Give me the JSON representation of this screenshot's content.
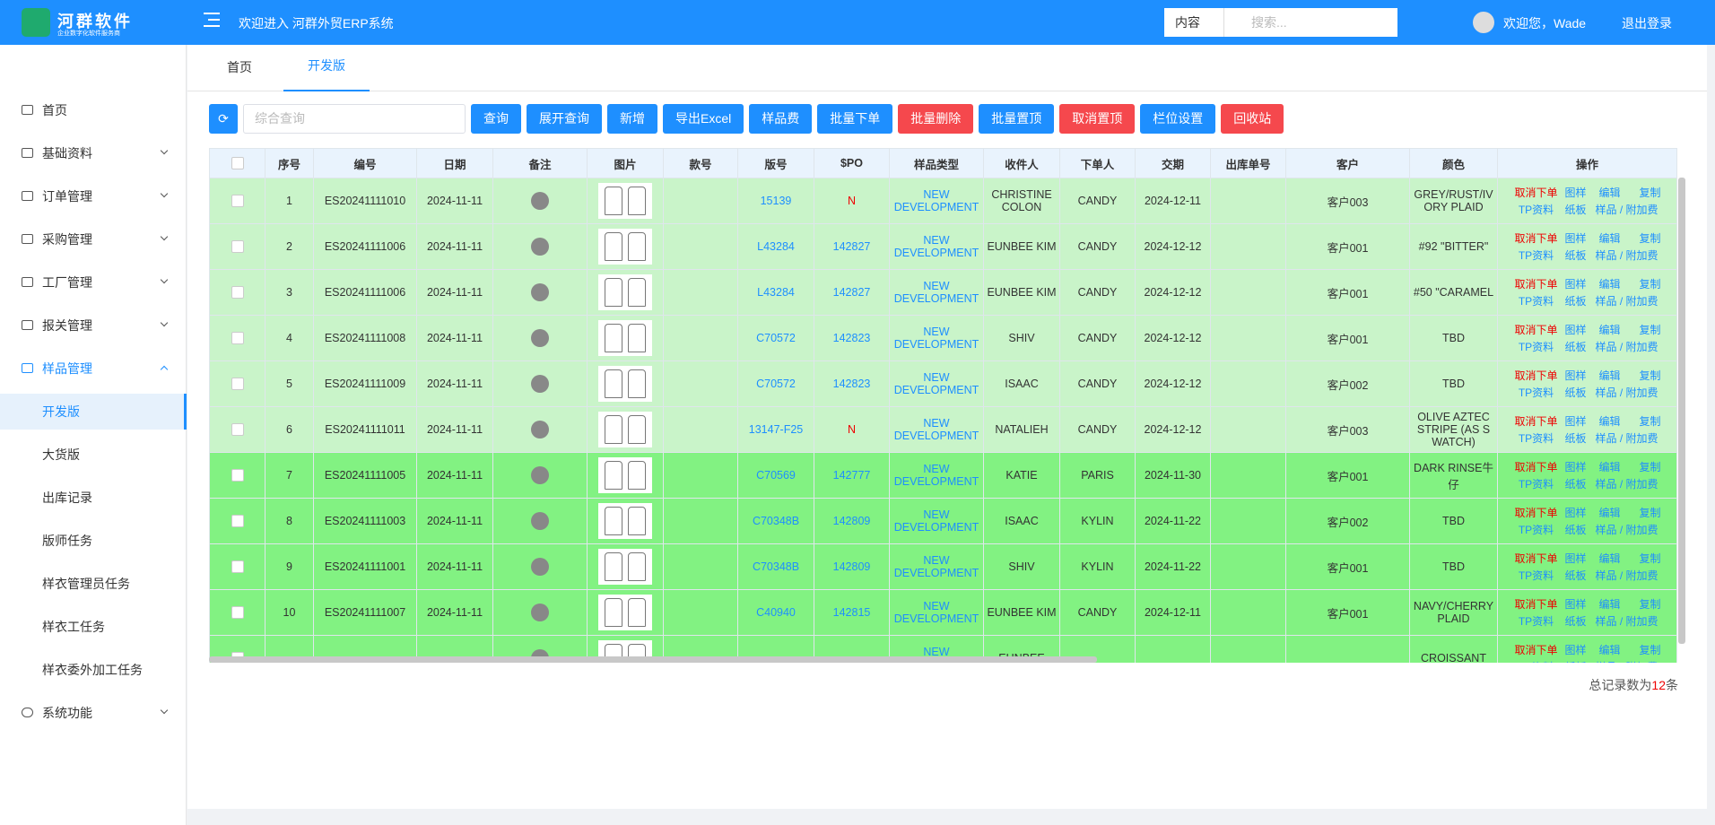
{
  "header": {
    "brand": "河群软件",
    "brand_sub": "企业数字化软件服务商",
    "welcome": "欢迎进入 河群外贸ERP系统",
    "search_scope": "内容",
    "search_placeholder": "搜索...",
    "greeting": "欢迎您，Wade",
    "logout": "退出登录"
  },
  "sidebar": {
    "items": [
      "首页",
      "基础资料",
      "订单管理",
      "采购管理",
      "工厂管理",
      "报关管理",
      "样品管理"
    ],
    "sub_items": [
      "开发版",
      "大货版",
      "出库记录",
      "版师任务",
      "样衣管理员任务",
      "样衣工任务",
      "样衣委外加工任务"
    ],
    "last_item": "系统功能"
  },
  "tabs": [
    "首页",
    "开发版"
  ],
  "toolbar": {
    "search_placeholder": "综合查询",
    "buttons": [
      "查询",
      "展开查询",
      "新增",
      "导出Excel",
      "样品费",
      "批量下单",
      "批量删除",
      "批量置顶",
      "取消置顶",
      "栏位设置",
      "回收站"
    ]
  },
  "table": {
    "columns": [
      "序号",
      "编号",
      "日期",
      "备注",
      "图片",
      "款号",
      "版号",
      "$PO",
      "样品类型",
      "收件人",
      "下单人",
      "交期",
      "出库单号",
      "客户",
      "颜色",
      "操作"
    ],
    "ops": [
      "取消下单",
      "图样",
      "编辑",
      "复制",
      "TP资料",
      "纸板",
      "样品 / 附加费"
    ],
    "rows": [
      {
        "seq": "1",
        "code": "ES20241111010",
        "date": "2024-11-11",
        "style": null,
        "plate": "15139",
        "po": "N",
        "type": "NEW DEVELOPMENT",
        "receiver": "CHRISTINE COLON",
        "orderer": "CANDY",
        "due": "2024-12-11",
        "outbound": null,
        "customer": "客户003",
        "color": "GREY/RUST/IVORY PLAID"
      },
      {
        "seq": "2",
        "code": "ES20241111006",
        "date": "2024-11-11",
        "style": null,
        "plate": "L43284",
        "po": "142827",
        "type": "NEW DEVELOPMENT",
        "receiver": "EUNBEE KIM",
        "orderer": "CANDY",
        "due": "2024-12-12",
        "outbound": null,
        "customer": "客户001",
        "color": "#92 \"BITTER\""
      },
      {
        "seq": "3",
        "code": "ES20241111006",
        "date": "2024-11-11",
        "style": null,
        "plate": "L43284",
        "po": "142827",
        "type": "NEW DEVELOPMENT",
        "receiver": "EUNBEE KIM",
        "orderer": "CANDY",
        "due": "2024-12-12",
        "outbound": null,
        "customer": "客户001",
        "color": "#50 \"CARAMEL"
      },
      {
        "seq": "4",
        "code": "ES20241111008",
        "date": "2024-11-11",
        "style": null,
        "plate": "C70572",
        "po": "142823",
        "type": "NEW DEVELOPMENT",
        "receiver": "SHIV",
        "orderer": "CANDY",
        "due": "2024-12-12",
        "outbound": null,
        "customer": "客户001",
        "color": "TBD"
      },
      {
        "seq": "5",
        "code": "ES20241111009",
        "date": "2024-11-11",
        "style": null,
        "plate": "C70572",
        "po": "142823",
        "type": "NEW DEVELOPMENT",
        "receiver": "ISAAC",
        "orderer": "CANDY",
        "due": "2024-12-12",
        "outbound": null,
        "customer": "客户002",
        "color": "TBD"
      },
      {
        "seq": "6",
        "code": "ES20241111011",
        "date": "2024-11-11",
        "style": null,
        "plate": "13147-F25",
        "po": "N",
        "type": "NEW DEVELOPMENT",
        "receiver": "NATALIEH",
        "orderer": "CANDY",
        "due": "2024-12-12",
        "outbound": null,
        "customer": "客户003",
        "color": "OLIVE AZTEC STRIPE (AS SWATCH)"
      },
      {
        "seq": "7",
        "code": "ES20241111005",
        "date": "2024-11-11",
        "style": null,
        "plate": "C70569",
        "po": "142777",
        "type": "NEW DEVELOPMENT",
        "receiver": "KATIE",
        "orderer": "PARIS",
        "due": "2024-11-30",
        "outbound": null,
        "customer": "客户001",
        "color": "DARK RINSE牛仔"
      },
      {
        "seq": "8",
        "code": "ES20241111003",
        "date": "2024-11-11",
        "style": null,
        "plate": "C70348B",
        "po": "142809",
        "type": "NEW DEVELOPMENT",
        "receiver": "ISAAC",
        "orderer": "KYLIN",
        "due": "2024-11-22",
        "outbound": null,
        "customer": "客户002",
        "color": "TBD"
      },
      {
        "seq": "9",
        "code": "ES20241111001",
        "date": "2024-11-11",
        "style": null,
        "plate": "C70348B",
        "po": "142809",
        "type": "NEW DEVELOPMENT",
        "receiver": "SHIV",
        "orderer": "KYLIN",
        "due": "2024-11-22",
        "outbound": null,
        "customer": "客户001",
        "color": "TBD"
      },
      {
        "seq": "10",
        "code": "ES20241111007",
        "date": "2024-11-11",
        "style": null,
        "plate": "C40940",
        "po": "142815",
        "type": "NEW DEVELOPMENT",
        "receiver": "EUNBEE KIM",
        "orderer": "CANDY",
        "due": "2024-12-11",
        "outbound": null,
        "customer": "客户001",
        "color": "NAVY/CHERRY PLAID"
      },
      {
        "seq": null,
        "code": null,
        "date": null,
        "style": null,
        "plate": null,
        "po": null,
        "type": "NEW DEVELOPMENT",
        "receiver": "EUNBEE",
        "orderer": null,
        "due": null,
        "outbound": null,
        "customer": null,
        "color": "CROISSANT"
      }
    ]
  },
  "footer": {
    "prefix": "总记录数为",
    "total": 12,
    "suffix": "条"
  }
}
